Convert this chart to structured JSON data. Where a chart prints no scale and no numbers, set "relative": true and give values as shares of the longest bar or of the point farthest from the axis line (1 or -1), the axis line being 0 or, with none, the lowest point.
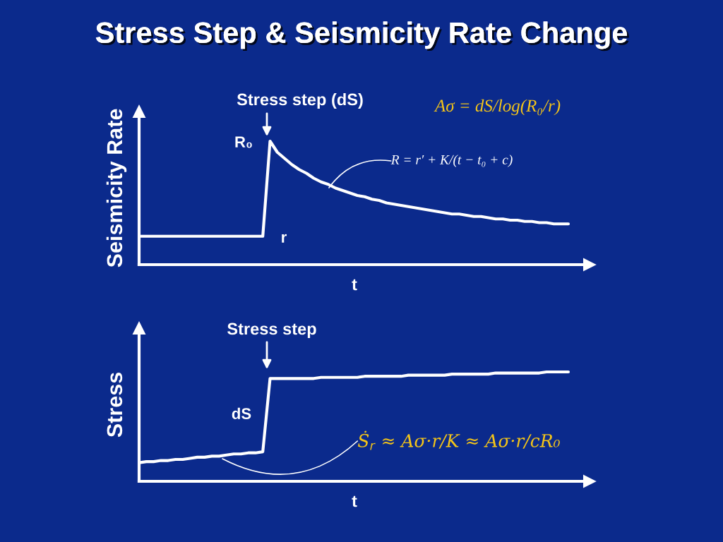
{
  "chart_data": [
    {
      "type": "line",
      "title": "Stress Step & Seismicity Rate Change",
      "relative": true,
      "xlabel": "t",
      "ylabel": "Seismicity Rate",
      "categories": [
        null,
        null,
        null,
        null,
        null,
        null,
        null,
        null,
        null,
        null,
        null,
        null,
        null,
        null,
        null,
        null,
        null,
        null,
        null,
        null,
        null,
        null,
        null,
        null,
        null,
        null,
        null,
        null,
        null,
        null,
        null,
        null,
        null,
        null,
        null,
        null,
        null,
        null,
        null,
        null,
        null,
        null,
        null,
        null,
        null,
        null,
        null,
        null,
        null,
        null,
        null,
        null,
        null,
        null,
        null,
        null,
        null,
        null,
        null,
        null
      ],
      "series": [
        {
          "color": "#ffffff",
          "values": [
            0.23,
            0.23,
            0.23,
            0.23,
            0.23,
            0.23,
            0.23,
            0.23,
            0.23,
            0.23,
            0.23,
            0.23,
            0.23,
            0.23,
            0.23,
            0.23,
            0.23,
            0.23,
            1.0,
            0.91,
            0.86,
            0.81,
            0.77,
            0.74,
            0.7,
            0.67,
            0.65,
            0.62,
            0.6,
            0.58,
            0.56,
            0.55,
            0.53,
            0.52,
            0.5,
            0.49,
            0.48,
            0.47,
            0.46,
            0.45,
            0.44,
            0.43,
            0.42,
            0.41,
            0.41,
            0.4,
            0.39,
            0.39,
            0.38,
            0.37,
            0.37,
            0.36,
            0.36,
            0.35,
            0.35,
            0.34,
            0.34,
            0.33,
            0.33,
            0.33
          ]
        }
      ],
      "annotations": [
        "Stress step (dS)",
        "Aσ = dS/log(R₀/r)",
        "R₀",
        "R = r′ + K/(t − t₀ + c)",
        "r"
      ]
    },
    {
      "type": "line",
      "relative": true,
      "xlabel": "t",
      "ylabel": "Stress",
      "categories": [
        null,
        null,
        null,
        null,
        null,
        null,
        null,
        null,
        null,
        null,
        null,
        null,
        null,
        null,
        null,
        null,
        null,
        null,
        null,
        null,
        null,
        null,
        null,
        null,
        null,
        null,
        null,
        null,
        null,
        null,
        null,
        null,
        null,
        null,
        null,
        null,
        null,
        null,
        null,
        null,
        null,
        null,
        null,
        null,
        null,
        null,
        null,
        null,
        null,
        null,
        null,
        null,
        null,
        null,
        null,
        null,
        null,
        null,
        null,
        null
      ],
      "series": [
        {
          "color": "#ffffff",
          "values": [
            0.17,
            0.18,
            0.18,
            0.19,
            0.19,
            0.2,
            0.2,
            0.21,
            0.22,
            0.22,
            0.23,
            0.23,
            0.24,
            0.25,
            0.25,
            0.26,
            0.26,
            0.27,
            0.94,
            0.94,
            0.94,
            0.94,
            0.94,
            0.94,
            0.94,
            0.95,
            0.95,
            0.95,
            0.95,
            0.95,
            0.95,
            0.96,
            0.96,
            0.96,
            0.96,
            0.96,
            0.96,
            0.97,
            0.97,
            0.97,
            0.97,
            0.97,
            0.97,
            0.98,
            0.98,
            0.98,
            0.98,
            0.98,
            0.98,
            0.99,
            0.99,
            0.99,
            0.99,
            0.99,
            0.99,
            0.99,
            1.0,
            1.0,
            1.0,
            1.0
          ]
        }
      ],
      "annotations": [
        "Stress step",
        "dS",
        "Ṡ$_{r}$ ≈ Aσ·r/K ≈ Aσ·r/cR₀"
      ]
    }
  ]
}
